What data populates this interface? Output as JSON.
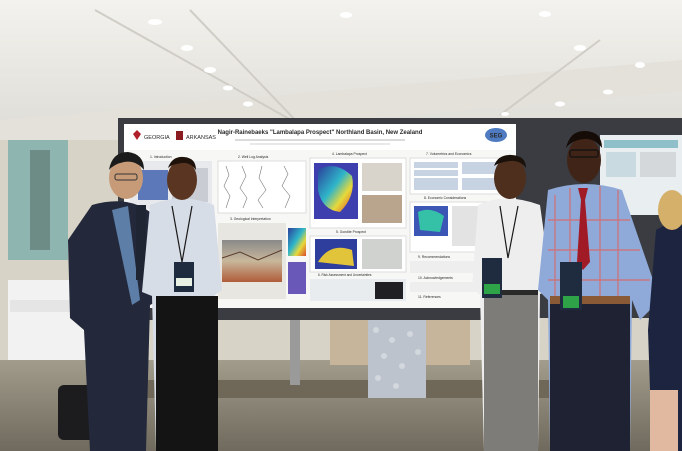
{
  "poster": {
    "title": "Nagir-Rainebaeks \"Lambalapa Prospect\" Northland Basin, New Zealand",
    "org_left": "GEORGIA",
    "org_right": "ARKANSAS",
    "logo_right": "SEG",
    "sections": {
      "s1": "1. Introduction",
      "s2": "2. Well Log Analysis",
      "s3": "3. Geological Interpretation",
      "s4": "4. Lambalapa Prospect",
      "s5": "5. Gondite Prospect",
      "s6": "6. Risk Assessment and Uncertainties",
      "s7": "7. Volumetrics and Economics",
      "s8": "8. Economic Considerations",
      "s9": "9. Recommendations",
      "s10": "10. Acknowledgements",
      "s11": "11. References"
    }
  },
  "colors": {
    "ceiling": "#ecebe6",
    "floor": "#8d8674",
    "board_frame": "#3a3c42",
    "poster_bg": "#f7f7f5",
    "suit": "#23283a"
  }
}
